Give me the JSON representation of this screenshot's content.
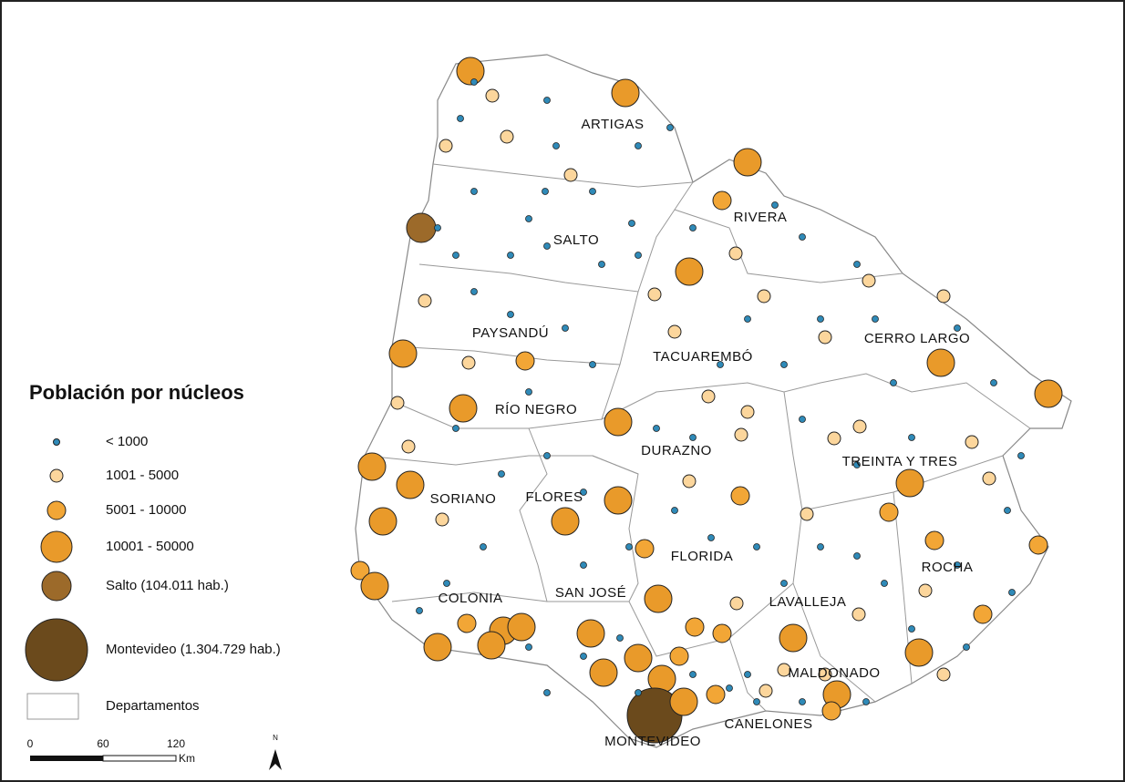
{
  "legend": {
    "title": "Población por núcleos",
    "items": [
      "< 1000",
      "1001 - 5000",
      "5001 - 10000",
      "10001 - 50000",
      "Salto (104.011 hab.)",
      "Montevideo (1.304.729 hab.)",
      "Departamentos"
    ]
  },
  "departments": [
    "ARTIGAS",
    "SALTO",
    "RIVERA",
    "PAYSANDÚ",
    "TACUAREMBÓ",
    "CERRO LARGO",
    "RÍO NEGRO",
    "DURAZNO",
    "TREINTA Y TRES",
    "SORIANO",
    "FLORES",
    "FLORIDA",
    "ROCHA",
    "COLONIA",
    "SAN JOSÉ",
    "LAVALLEJA",
    "MALDONADO",
    "CANELONES",
    "MONTEVIDEO"
  ],
  "scale_bar": {
    "ticks": [
      0,
      60,
      120
    ],
    "unit": "Km"
  },
  "north_arrow": "N"
}
